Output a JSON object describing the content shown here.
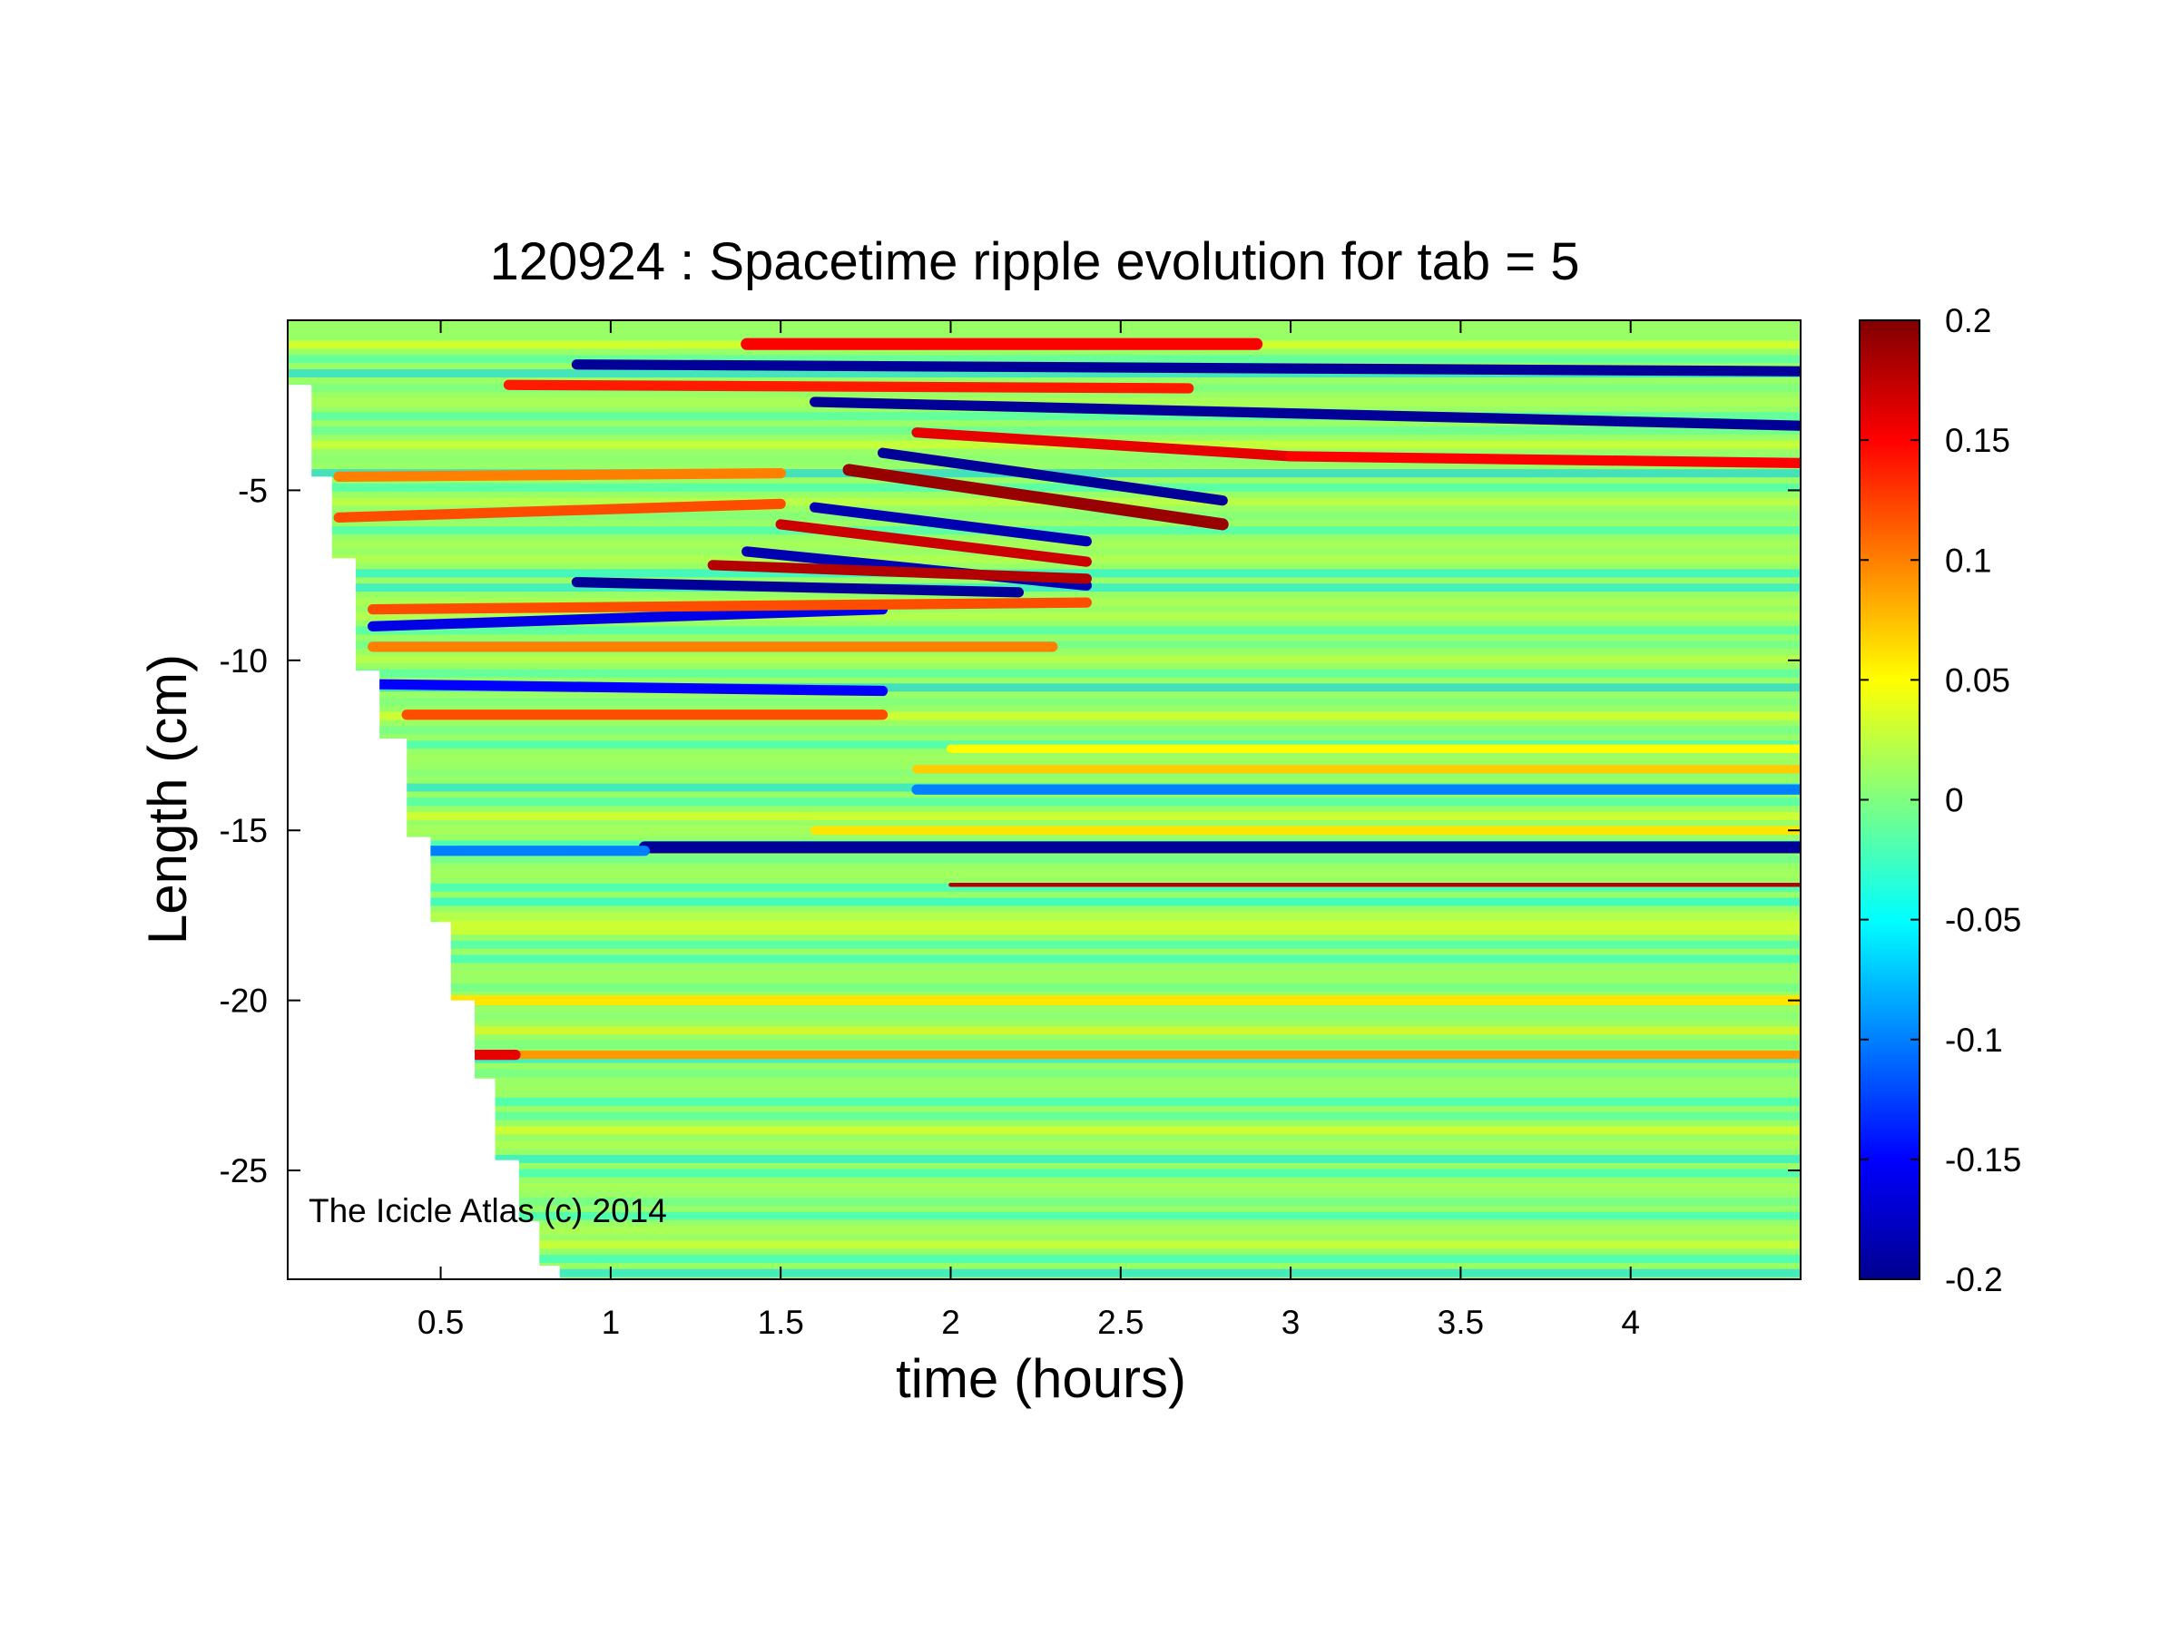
{
  "chart_data": {
    "type": "heatmap",
    "title": "120924 : Spacetime ripple evolution for tab = 5",
    "xlabel": "time (hours)",
    "ylabel": "Length (cm)",
    "xlim": [
      0.05,
      4.5
    ],
    "ylim": [
      -28.2,
      0
    ],
    "x_ticks": [
      0.5,
      1,
      1.5,
      2,
      2.5,
      3,
      3.5,
      4
    ],
    "x_tick_labels": [
      "0.5",
      "1",
      "1.5",
      "2",
      "2.5",
      "3",
      "3.5",
      "4"
    ],
    "y_ticks": [
      -5,
      -10,
      -15,
      -20,
      -25
    ],
    "y_tick_labels": [
      "-5",
      "-10",
      "-15",
      "-20",
      "-25"
    ],
    "colorbar": {
      "colormap": "jet",
      "clim": [
        -0.2,
        0.2
      ],
      "ticks": [
        0.2,
        0.15,
        0.1,
        0.05,
        0,
        -0.05,
        -0.1,
        -0.15,
        -0.2
      ],
      "tick_labels": [
        "0.2",
        "0.15",
        "0.1",
        "0.05",
        "0",
        "-0.05",
        "-0.1",
        "-0.15",
        "-0.2"
      ]
    },
    "coverage_boundary": [
      {
        "length": -1.9,
        "start_time": 0.05
      },
      {
        "length": -4.6,
        "start_time": 0.12
      },
      {
        "length": -7.0,
        "start_time": 0.18
      },
      {
        "length": -10.3,
        "start_time": 0.25
      },
      {
        "length": -12.3,
        "start_time": 0.32
      },
      {
        "length": -15.2,
        "start_time": 0.4
      },
      {
        "length": -17.7,
        "start_time": 0.47
      },
      {
        "length": -20.0,
        "start_time": 0.53
      },
      {
        "length": -22.3,
        "start_time": 0.6
      },
      {
        "length": -24.7,
        "start_time": 0.66
      },
      {
        "length": -26.5,
        "start_time": 0.73
      },
      {
        "length": -27.8,
        "start_time": 0.79
      },
      {
        "length": -28.2,
        "start_time": 0.85
      }
    ],
    "features": [
      {
        "t0": 1.4,
        "y0": -0.7,
        "t1": 2.9,
        "y1": -0.7,
        "value": 0.15,
        "width": 0.35
      },
      {
        "t0": 0.9,
        "y0": -1.3,
        "t1": 4.5,
        "y1": -1.5,
        "value": -0.19,
        "width": 0.3
      },
      {
        "t0": 0.7,
        "y0": -1.9,
        "t1": 2.7,
        "y1": -2.0,
        "value": 0.14,
        "width": 0.3
      },
      {
        "t0": 1.6,
        "y0": -2.4,
        "t1": 4.5,
        "y1": -3.1,
        "value": -0.19,
        "width": 0.3
      },
      {
        "t0": 1.9,
        "y0": -3.3,
        "t1": 3.0,
        "y1": -4.0,
        "value": 0.16,
        "width": 0.3
      },
      {
        "t0": 3.0,
        "y0": -4.0,
        "t1": 4.5,
        "y1": -4.2,
        "value": 0.15,
        "width": 0.3
      },
      {
        "t0": 1.8,
        "y0": -3.9,
        "t1": 2.8,
        "y1": -5.3,
        "value": -0.19,
        "width": 0.3
      },
      {
        "t0": 1.7,
        "y0": -4.4,
        "t1": 2.8,
        "y1": -6.0,
        "value": 0.19,
        "width": 0.35
      },
      {
        "t0": 1.6,
        "y0": -5.5,
        "t1": 2.4,
        "y1": -6.5,
        "value": -0.18,
        "width": 0.3
      },
      {
        "t0": 1.5,
        "y0": -6.0,
        "t1": 2.4,
        "y1": -7.1,
        "value": 0.17,
        "width": 0.3
      },
      {
        "t0": 1.4,
        "y0": -6.8,
        "t1": 2.4,
        "y1": -7.8,
        "value": -0.18,
        "width": 0.3
      },
      {
        "t0": 1.3,
        "y0": -7.2,
        "t1": 2.4,
        "y1": -7.6,
        "value": 0.18,
        "width": 0.3
      },
      {
        "t0": 0.9,
        "y0": -7.7,
        "t1": 2.2,
        "y1": -8.0,
        "value": -0.19,
        "width": 0.3
      },
      {
        "t0": 0.2,
        "y0": -5.8,
        "t1": 1.5,
        "y1": -5.4,
        "value": 0.12,
        "width": 0.3
      },
      {
        "t0": 0.2,
        "y0": -4.6,
        "t1": 1.5,
        "y1": -4.5,
        "value": 0.1,
        "width": 0.3
      },
      {
        "t0": 0.3,
        "y0": -9.0,
        "t1": 1.8,
        "y1": -8.5,
        "value": -0.16,
        "width": 0.3
      },
      {
        "t0": 0.3,
        "y0": -8.5,
        "t1": 2.4,
        "y1": -8.3,
        "value": 0.12,
        "width": 0.3
      },
      {
        "t0": 0.3,
        "y0": -9.6,
        "t1": 2.3,
        "y1": -9.6,
        "value": 0.1,
        "width": 0.3
      },
      {
        "t0": 0.3,
        "y0": -10.7,
        "t1": 1.8,
        "y1": -10.9,
        "value": -0.15,
        "width": 0.3
      },
      {
        "t0": 0.4,
        "y0": -11.6,
        "t1": 1.8,
        "y1": -11.6,
        "value": 0.12,
        "width": 0.3
      },
      {
        "t0": 2.0,
        "y0": -12.6,
        "t1": 4.5,
        "y1": -12.6,
        "value": 0.05,
        "width": 0.25
      },
      {
        "t0": 1.9,
        "y0": -13.2,
        "t1": 4.5,
        "y1": -13.2,
        "value": 0.07,
        "width": 0.25
      },
      {
        "t0": 1.9,
        "y0": -13.8,
        "t1": 4.5,
        "y1": -13.8,
        "value": -0.1,
        "width": 0.3
      },
      {
        "t0": 1.6,
        "y0": -15.0,
        "t1": 4.5,
        "y1": -15.0,
        "value": 0.06,
        "width": 0.25
      },
      {
        "t0": 1.1,
        "y0": -15.5,
        "t1": 4.5,
        "y1": -15.5,
        "value": -0.19,
        "width": 0.35
      },
      {
        "t0": 0.4,
        "y0": -15.6,
        "t1": 1.1,
        "y1": -15.6,
        "value": -0.1,
        "width": 0.3
      },
      {
        "t0": 2.0,
        "y0": -16.6,
        "t1": 4.5,
        "y1": -16.6,
        "value": 0.18,
        "width": 0.12
      },
      {
        "t0": 0.5,
        "y0": -17.8,
        "t1": 4.5,
        "y1": -17.8,
        "value": 0.03,
        "width": 0.3
      },
      {
        "t0": 0.5,
        "y0": -20.0,
        "t1": 4.5,
        "y1": -20.0,
        "value": 0.06,
        "width": 0.3
      },
      {
        "t0": 0.6,
        "y0": -21.6,
        "t1": 4.5,
        "y1": -21.6,
        "value": 0.09,
        "width": 0.25
      },
      {
        "t0": 0.6,
        "y0": -21.6,
        "t1": 0.72,
        "y1": -21.6,
        "value": 0.16,
        "width": 0.3
      }
    ]
  },
  "watermark": "The Icicle Atlas (c) 2014"
}
